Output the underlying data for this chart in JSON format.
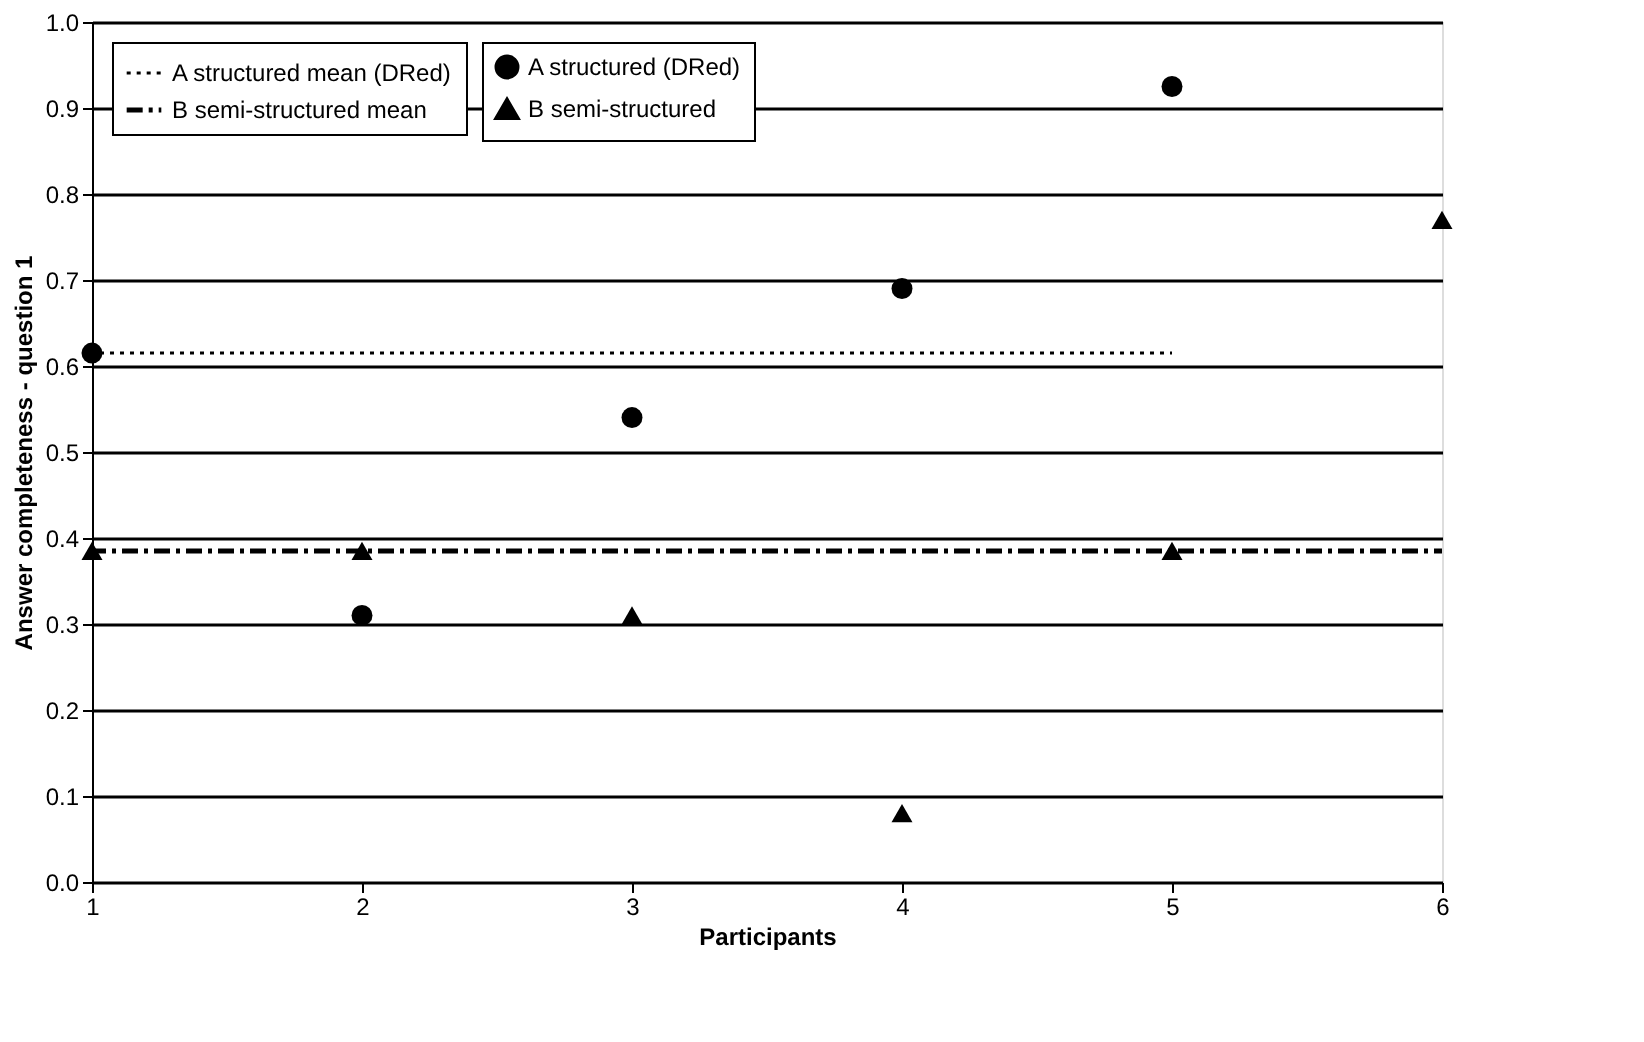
{
  "chart_data": {
    "type": "scatter",
    "xlabel": "Participants",
    "ylabel": "Answer completeness - question 1",
    "xlim": [
      1,
      6
    ],
    "xticks": [
      1,
      2,
      3,
      4,
      5,
      6
    ],
    "ylim": [
      0,
      1
    ],
    "yticks": [
      {
        "value": 0,
        "label": "0.0"
      },
      0.1,
      0.2,
      0.3,
      0.4,
      0.5,
      0.6,
      0.7,
      0.8,
      0.9,
      {
        "value": 1,
        "label": "1.0"
      }
    ],
    "grid": "y",
    "legend": "top left",
    "series": [
      {
        "name": "A structured mean (DRed)",
        "type": "line",
        "line_style": "dotted",
        "marker": "none",
        "color": "#000000",
        "x": [
          1,
          5
        ],
        "values": [
          0.615,
          0.615
        ]
      },
      {
        "name": "B semi-structured mean",
        "type": "line",
        "line_style": "dashed",
        "marker": "none",
        "color": "#000000",
        "x": [
          1,
          6
        ],
        "values": [
          0.385,
          0.385
        ]
      },
      {
        "name": "A structured (DRed)",
        "type": "scatter",
        "marker": "circle",
        "color": "#000000",
        "x": [
          1,
          2,
          3,
          4,
          5
        ],
        "values": [
          0.615,
          0.31,
          0.54,
          0.69,
          0.925
        ]
      },
      {
        "name": "B semi-structured",
        "type": "scatter",
        "marker": "triangle",
        "color": "#000000",
        "x": [
          1,
          2,
          3,
          4,
          5,
          6
        ],
        "values": [
          0.385,
          0.385,
          0.31,
          0.08,
          0.385,
          0.77
        ]
      }
    ]
  }
}
